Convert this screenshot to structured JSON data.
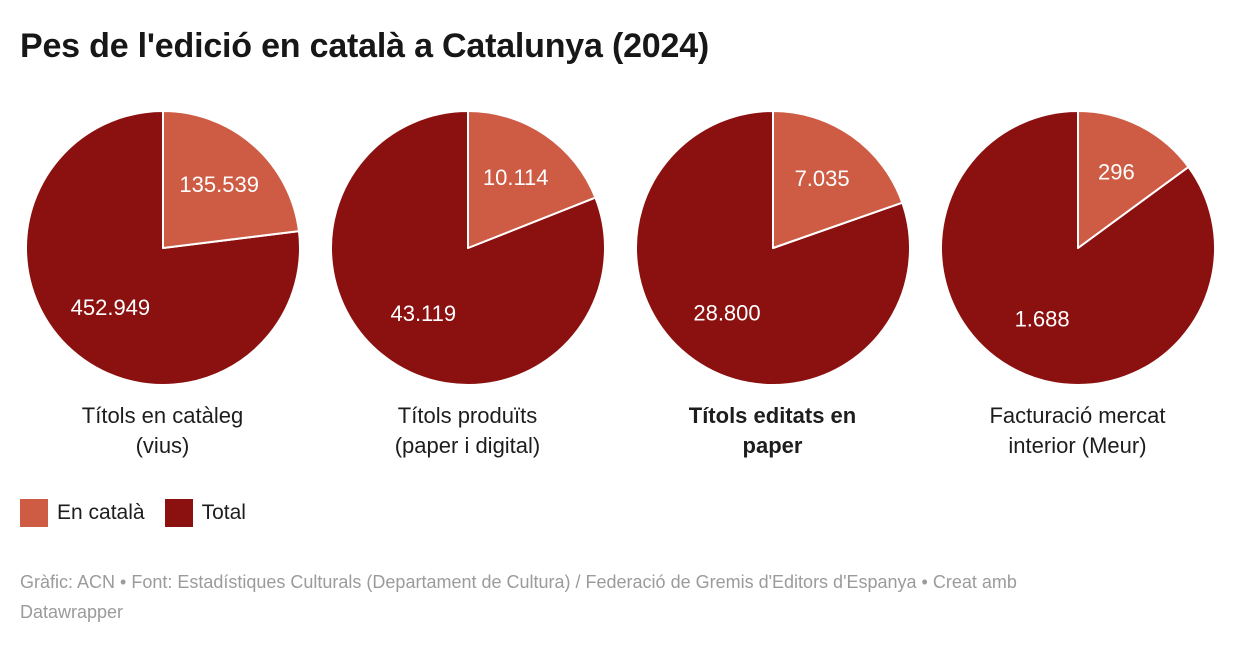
{
  "title": "Pes de l'edició en català a Catalunya (2024)",
  "colors": {
    "en_catala": "#CE5B43",
    "total": "#8B1110"
  },
  "legend": {
    "items": [
      {
        "label": "En català",
        "color": "#CE5B43"
      },
      {
        "label": "Total",
        "color": "#8B1110"
      }
    ]
  },
  "footer": {
    "line1": "Gràfic: ACN • Font: Estadístiques Culturals (Departament de Cultura) / Federació de Gremis d'Editors d'Espanya • Creat amb",
    "line2": "Datawrapper"
  },
  "chart_data": [
    {
      "type": "pie",
      "caption": "Títols en catàleg (vius)",
      "caption_line1": "Títols en catàleg",
      "caption_line2": "(vius)",
      "caption_bold": false,
      "slices": [
        {
          "name": "En català",
          "value": 135539,
          "label": "135.539"
        },
        {
          "name": "Total",
          "value": 452949,
          "label": "452.949"
        }
      ]
    },
    {
      "type": "pie",
      "caption": "Títols produïts (paper i digital)",
      "caption_line1": "Títols produïts",
      "caption_line2": "(paper i digital)",
      "caption_bold": false,
      "slices": [
        {
          "name": "En català",
          "value": 10114,
          "label": "10.114"
        },
        {
          "name": "Total",
          "value": 43119,
          "label": "43.119"
        }
      ]
    },
    {
      "type": "pie",
      "caption": "Títols editats en paper",
      "caption_line1": "Títols editats en",
      "caption_line2": "paper",
      "caption_bold": true,
      "slices": [
        {
          "name": "En català",
          "value": 7035,
          "label": "7.035"
        },
        {
          "name": "Total",
          "value": 28800,
          "label": "28.800"
        }
      ]
    },
    {
      "type": "pie",
      "caption": "Facturació mercat interior (Meur)",
      "caption_line1": "Facturació mercat",
      "caption_line2": "interior (Meur)",
      "caption_bold": false,
      "slices": [
        {
          "name": "En català",
          "value": 296,
          "label": "296"
        },
        {
          "name": "Total",
          "value": 1688,
          "label": "1.688"
        }
      ]
    }
  ]
}
